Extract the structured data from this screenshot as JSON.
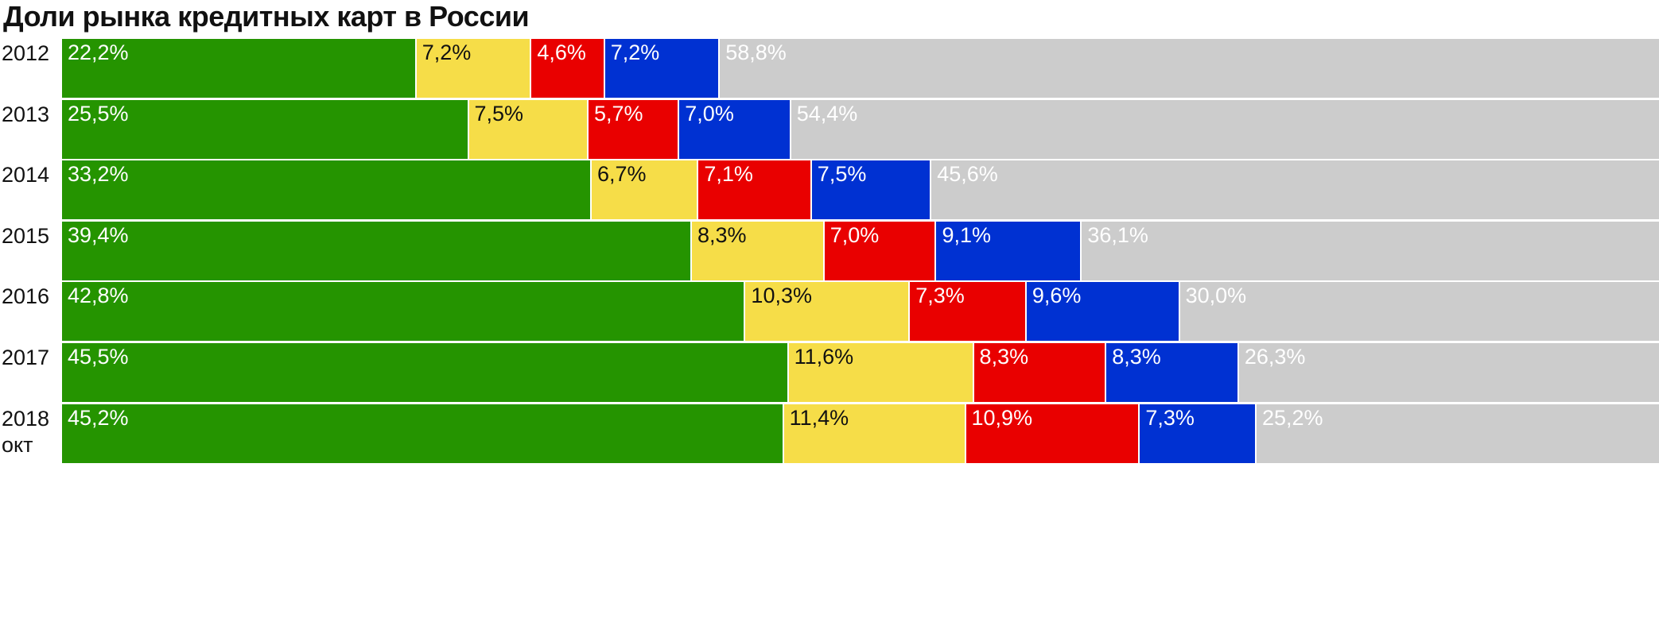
{
  "title": "Доли рынка кредитных карт в России",
  "colors": {
    "green": "#259400",
    "yellow": "#f6dd48",
    "red": "#e90000",
    "blue": "#0031d2",
    "gray": "#cccccc"
  },
  "label_colors": {
    "green": "#ffffff",
    "yellow": "#111111",
    "red": "#ffffff",
    "blue": "#ffffff",
    "gray": "#ffffff"
  },
  "chart_data": {
    "type": "bar",
    "orientation": "horizontal",
    "stacked": true,
    "normalized": "100%",
    "categories": [
      "2012",
      "2013",
      "2014",
      "2015",
      "2016",
      "2017",
      "2018\nокт"
    ],
    "series": [
      {
        "color": "green",
        "values": [
          22.2,
          25.5,
          33.2,
          39.4,
          42.8,
          45.5,
          45.2
        ],
        "labels": [
          "22,2%",
          "25,5%",
          "33,2%",
          "39,4%",
          "42,8%",
          "45,5%",
          "45,2%"
        ]
      },
      {
        "color": "yellow",
        "values": [
          7.2,
          7.5,
          6.7,
          8.3,
          10.3,
          11.6,
          11.4
        ],
        "labels": [
          "7,2%",
          "7,5%",
          "6,7%",
          "8,3%",
          "10,3%",
          "11,6%",
          "11,4%"
        ]
      },
      {
        "color": "red",
        "values": [
          4.6,
          5.7,
          7.1,
          7.0,
          7.3,
          8.3,
          10.9
        ],
        "labels": [
          "4,6%",
          "5,7%",
          "7,1%",
          "7,0%",
          "7,3%",
          "8,3%",
          "10,9%"
        ]
      },
      {
        "color": "blue",
        "values": [
          7.2,
          7.0,
          7.5,
          9.1,
          9.6,
          8.3,
          7.3
        ],
        "labels": [
          "7,2%",
          "7,0%",
          "7,5%",
          "9,1%",
          "9,6%",
          "8,3%",
          "7,3%"
        ]
      },
      {
        "color": "gray",
        "values": [
          58.8,
          54.4,
          45.6,
          36.1,
          30.0,
          26.3,
          25.2
        ],
        "labels": [
          "58,8%",
          "54,4%",
          "45,6%",
          "36,1%",
          "30,0%",
          "26,3%",
          "25,2%"
        ]
      }
    ],
    "title": "Доли рынка кредитных карт в России",
    "xlim": [
      0,
      100
    ],
    "grid": false,
    "legend": "none"
  }
}
